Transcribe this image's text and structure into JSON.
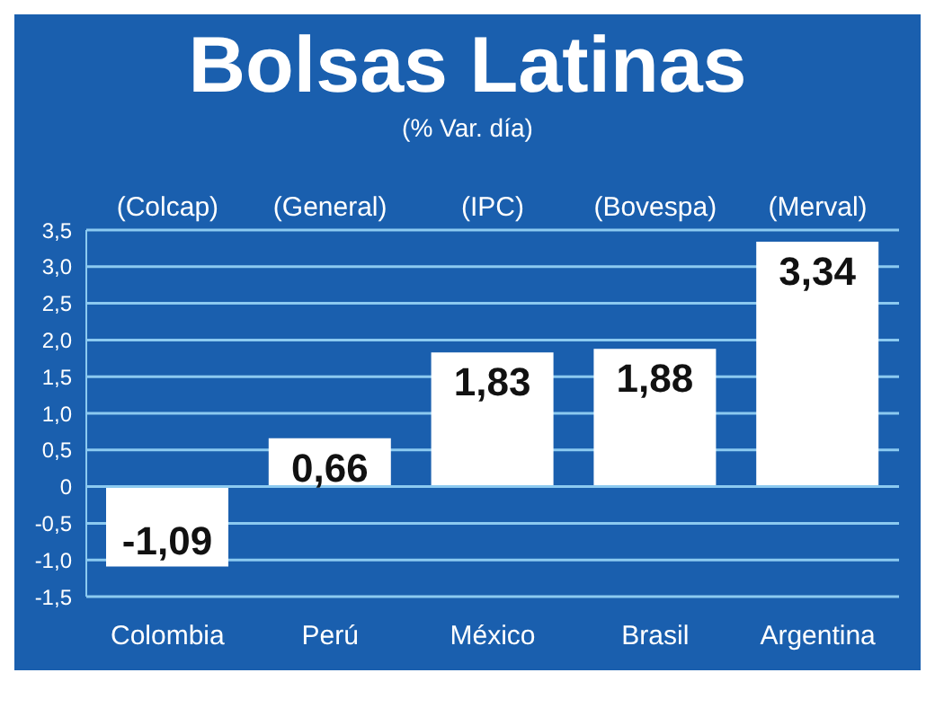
{
  "chart_data": {
    "type": "bar",
    "title": "Bolsas Latinas",
    "subtitle": "(% Var. día)",
    "categories": [
      "Colombia",
      "Perú",
      "México",
      "Brasil",
      "Argentina"
    ],
    "values": [
      -1.09,
      0.66,
      1.83,
      1.88,
      3.34
    ],
    "value_labels": [
      "-1,09",
      "0,66",
      "1,83",
      "1,88",
      "3,34"
    ],
    "color": "#ffffff",
    "ylim": [
      -1.5,
      3.5
    ],
    "yticks": [
      {
        "value": -1.5,
        "label": "-1,5"
      },
      {
        "value": -1,
        "label": "-1,0"
      },
      {
        "value": -0.5,
        "label": "-0,5"
      },
      0,
      {
        "value": 0.5,
        "label": "0,5"
      },
      {
        "value": 1,
        "label": "1,0"
      },
      {
        "value": 1.5,
        "label": "1,5"
      },
      {
        "value": 2,
        "label": "2,0"
      },
      {
        "value": 2.5,
        "label": "2,5"
      },
      {
        "value": 3,
        "label": "3,0"
      },
      {
        "value": 3.5,
        "label": "3,5"
      }
    ],
    "grid": "y",
    "legend": false,
    "annotations": [
      "(Colcap)",
      "(General)",
      "(IPC)",
      "(Bovespa)",
      "(Merval)"
    ]
  }
}
